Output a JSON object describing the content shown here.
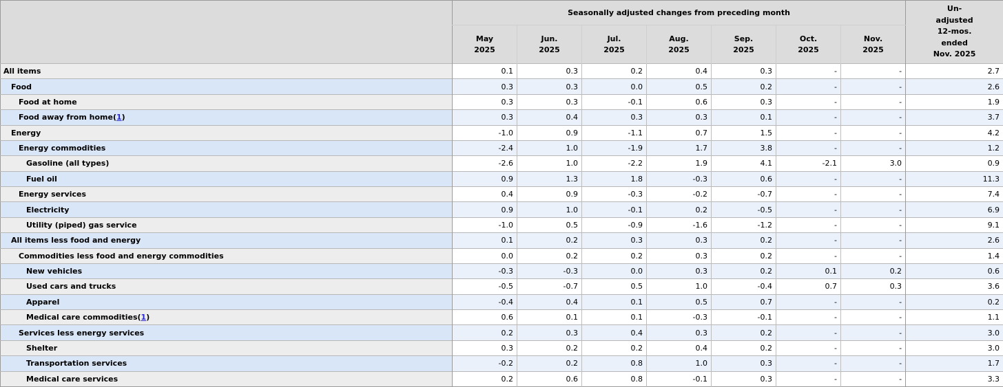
{
  "table": {
    "column_spanner": "Seasonally adjusted changes from preceding month",
    "unadjusted_header": "Un-\nadjusted\n12-mos.\nended\nNov. 2025",
    "month_headers": [
      "May\n2025",
      "Jun.\n2025",
      "Jul.\n2025",
      "Aug.\n2025",
      "Sep.\n2025",
      "Oct.\n2025",
      "Nov.\n2025"
    ],
    "missing_value_symbol": "-",
    "rows": [
      {
        "label": "All items",
        "indent": 0,
        "footnote": null,
        "values": [
          "0.1",
          "0.3",
          "0.2",
          "0.4",
          "0.3",
          "-",
          "-",
          "2.7"
        ]
      },
      {
        "label": "Food",
        "indent": 1,
        "footnote": null,
        "values": [
          "0.3",
          "0.3",
          "0.0",
          "0.5",
          "0.2",
          "-",
          "-",
          "2.6"
        ]
      },
      {
        "label": "Food at home",
        "indent": 2,
        "footnote": null,
        "values": [
          "0.3",
          "0.3",
          "-0.1",
          "0.6",
          "0.3",
          "-",
          "-",
          "1.9"
        ]
      },
      {
        "label": "Food away from home",
        "indent": 2,
        "footnote": "1",
        "values": [
          "0.3",
          "0.4",
          "0.3",
          "0.3",
          "0.1",
          "-",
          "-",
          "3.7"
        ]
      },
      {
        "label": "Energy",
        "indent": 1,
        "footnote": null,
        "values": [
          "-1.0",
          "0.9",
          "-1.1",
          "0.7",
          "1.5",
          "-",
          "-",
          "4.2"
        ]
      },
      {
        "label": "Energy commodities",
        "indent": 2,
        "footnote": null,
        "values": [
          "-2.4",
          "1.0",
          "-1.9",
          "1.7",
          "3.8",
          "-",
          "-",
          "1.2"
        ]
      },
      {
        "label": "Gasoline (all types)",
        "indent": 3,
        "footnote": null,
        "values": [
          "-2.6",
          "1.0",
          "-2.2",
          "1.9",
          "4.1",
          "-2.1",
          "3.0",
          "0.9"
        ]
      },
      {
        "label": "Fuel oil",
        "indent": 3,
        "footnote": null,
        "values": [
          "0.9",
          "1.3",
          "1.8",
          "-0.3",
          "0.6",
          "-",
          "-",
          "11.3"
        ]
      },
      {
        "label": "Energy services",
        "indent": 2,
        "footnote": null,
        "values": [
          "0.4",
          "0.9",
          "-0.3",
          "-0.2",
          "-0.7",
          "-",
          "-",
          "7.4"
        ]
      },
      {
        "label": "Electricity",
        "indent": 3,
        "footnote": null,
        "values": [
          "0.9",
          "1.0",
          "-0.1",
          "0.2",
          "-0.5",
          "-",
          "-",
          "6.9"
        ]
      },
      {
        "label": "Utility (piped) gas service",
        "indent": 3,
        "footnote": null,
        "values": [
          "-1.0",
          "0.5",
          "-0.9",
          "-1.6",
          "-1.2",
          "-",
          "-",
          "9.1"
        ]
      },
      {
        "label": "All items less food and energy",
        "indent": 1,
        "footnote": null,
        "values": [
          "0.1",
          "0.2",
          "0.3",
          "0.3",
          "0.2",
          "-",
          "-",
          "2.6"
        ]
      },
      {
        "label": "Commodities less food and energy commodities",
        "indent": 2,
        "footnote": null,
        "values": [
          "0.0",
          "0.2",
          "0.2",
          "0.3",
          "0.2",
          "-",
          "-",
          "1.4"
        ]
      },
      {
        "label": "New vehicles",
        "indent": 3,
        "footnote": null,
        "values": [
          "-0.3",
          "-0.3",
          "0.0",
          "0.3",
          "0.2",
          "0.1",
          "0.2",
          "0.6"
        ]
      },
      {
        "label": "Used cars and trucks",
        "indent": 3,
        "footnote": null,
        "values": [
          "-0.5",
          "-0.7",
          "0.5",
          "1.0",
          "-0.4",
          "0.7",
          "0.3",
          "3.6"
        ]
      },
      {
        "label": "Apparel",
        "indent": 3,
        "footnote": null,
        "values": [
          "-0.4",
          "0.4",
          "0.1",
          "0.5",
          "0.7",
          "-",
          "-",
          "0.2"
        ]
      },
      {
        "label": "Medical care commodities",
        "indent": 3,
        "footnote": "1",
        "values": [
          "0.6",
          "0.1",
          "0.1",
          "-0.3",
          "-0.1",
          "-",
          "-",
          "1.1"
        ]
      },
      {
        "label": "Services less energy services",
        "indent": 2,
        "footnote": null,
        "values": [
          "0.2",
          "0.3",
          "0.4",
          "0.3",
          "0.2",
          "-",
          "-",
          "3.0"
        ]
      },
      {
        "label": "Shelter",
        "indent": 3,
        "footnote": null,
        "values": [
          "0.3",
          "0.2",
          "0.2",
          "0.4",
          "0.2",
          "-",
          "-",
          "3.0"
        ]
      },
      {
        "label": "Transportation services",
        "indent": 3,
        "footnote": null,
        "values": [
          "-0.2",
          "0.2",
          "0.8",
          "1.0",
          "0.3",
          "-",
          "-",
          "1.7"
        ]
      },
      {
        "label": "Medical care services",
        "indent": 3,
        "footnote": null,
        "values": [
          "0.2",
          "0.6",
          "0.8",
          "-0.1",
          "0.3",
          "-",
          "-",
          "3.3"
        ]
      }
    ]
  },
  "colors": {
    "header-bg": "#dcdcdc",
    "stub-gray": "#ededed",
    "stub-blue": "#d9e6f8",
    "data-blue": "#eaf1fb",
    "link-blue": "#2a2acc",
    "border-dark": "#9a9a9a",
    "border-light": "#bdbdbd",
    "row-border": "#b7b7b7"
  }
}
